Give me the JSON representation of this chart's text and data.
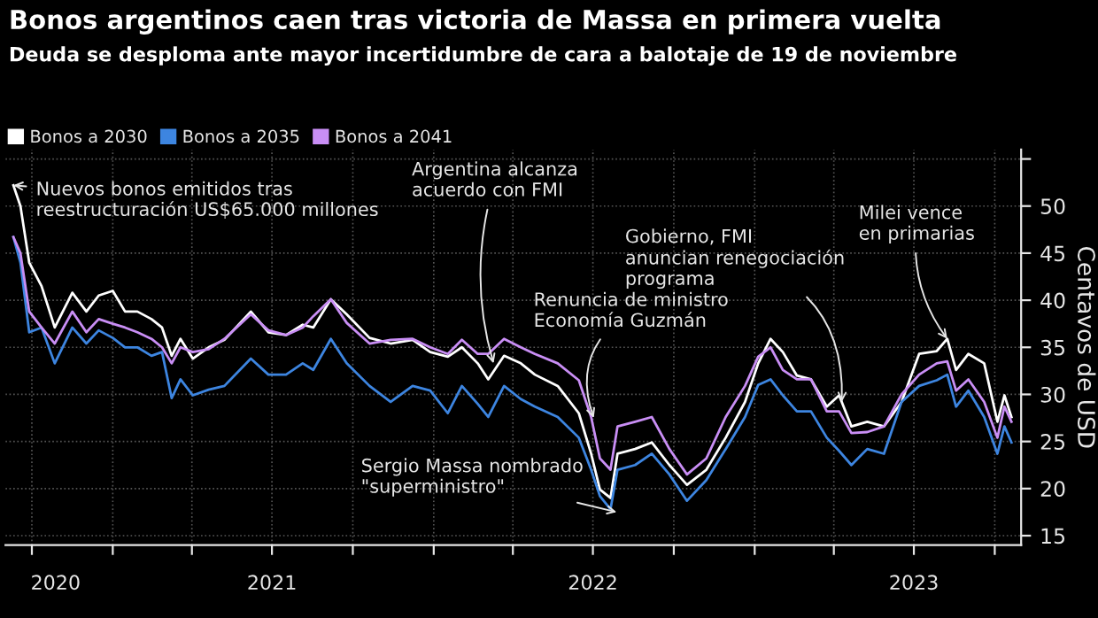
{
  "chart_data": {
    "type": "line",
    "title": "Bonos argentinos caen tras victoria de Massa en primera vuelta",
    "subtitle": "Deuda se desploma ante mayor incertidumbre de cara a balotaje de 19 de noviembre",
    "ylabel": "Centavos de USD",
    "x": [
      "2020-09-10",
      "2020-09-18",
      "2020-09-28",
      "2020-10-12",
      "2020-10-27",
      "2020-11-16",
      "2020-12-02",
      "2020-12-16",
      "2021-01-01",
      "2021-01-15",
      "2021-01-29",
      "2021-02-14",
      "2021-02-26",
      "2021-03-09",
      "2021-03-19",
      "2021-04-02",
      "2021-04-20",
      "2021-05-08",
      "2021-06-07",
      "2021-06-27",
      "2021-07-17",
      "2021-08-05",
      "2021-08-17",
      "2021-09-06",
      "2021-09-24",
      "2021-10-20",
      "2021-11-13",
      "2021-12-08",
      "2021-12-28",
      "2022-01-17",
      "2022-02-02",
      "2022-02-20",
      "2022-03-04",
      "2022-03-22",
      "2022-04-10",
      "2022-04-26",
      "2022-05-22",
      "2022-06-15",
      "2022-06-29",
      "2022-07-09",
      "2022-07-21",
      "2022-07-29",
      "2022-08-18",
      "2022-09-06",
      "2022-09-26",
      "2022-10-16",
      "2022-11-07",
      "2022-11-29",
      "2022-12-21",
      "2023-01-05",
      "2023-01-19",
      "2023-02-02",
      "2023-02-18",
      "2023-03-06",
      "2023-03-24",
      "2023-04-07",
      "2023-04-21",
      "2023-05-09",
      "2023-05-28",
      "2023-06-17",
      "2023-07-07",
      "2023-07-27",
      "2023-08-08",
      "2023-08-18",
      "2023-09-01",
      "2023-09-19",
      "2023-10-04",
      "2023-10-12",
      "2023-10-20"
    ],
    "series": [
      {
        "name": "Bonos a 2030",
        "color": "#ffffff",
        "values": [
          52.2,
          50.0,
          44.0,
          41.5,
          37.1,
          40.8,
          38.8,
          40.5,
          41.0,
          38.8,
          38.8,
          38.0,
          37.1,
          34.1,
          35.9,
          33.8,
          35.0,
          35.8,
          38.8,
          36.6,
          36.3,
          37.4,
          37.1,
          40.1,
          38.5,
          36.0,
          35.4,
          35.8,
          34.5,
          34.0,
          35.0,
          33.3,
          31.6,
          34.1,
          33.3,
          32.1,
          30.9,
          28.0,
          23.7,
          19.9,
          19.0,
          23.7,
          24.2,
          24.9,
          22.5,
          20.4,
          22.0,
          25.4,
          29.2,
          33.3,
          35.9,
          34.5,
          32.0,
          31.6,
          28.7,
          29.9,
          26.6,
          27.1,
          26.6,
          29.2,
          34.3,
          34.6,
          35.9,
          32.6,
          34.3,
          33.3,
          27.1,
          29.9,
          27.6
        ]
      },
      {
        "name": "Bonos a 2035",
        "color": "#3d85e0",
        "values": [
          46.7,
          44.0,
          36.6,
          37.1,
          33.3,
          37.1,
          35.4,
          36.8,
          36.0,
          35.0,
          35.0,
          34.1,
          34.5,
          29.6,
          31.6,
          29.9,
          30.5,
          30.9,
          33.8,
          32.1,
          32.1,
          33.3,
          32.6,
          35.9,
          33.3,
          30.9,
          29.2,
          30.9,
          30.4,
          28.0,
          30.9,
          29.0,
          27.6,
          30.9,
          29.5,
          28.7,
          27.6,
          25.4,
          22.0,
          19.2,
          17.8,
          22.0,
          22.5,
          23.7,
          21.5,
          18.7,
          20.9,
          24.2,
          27.6,
          31.0,
          31.6,
          29.9,
          28.2,
          28.2,
          25.4,
          24.0,
          22.5,
          24.2,
          23.7,
          29.2,
          30.9,
          31.5,
          32.1,
          28.7,
          30.4,
          27.6,
          23.7,
          26.6,
          24.9
        ]
      },
      {
        "name": "Bonos a 2041",
        "color": "#c98ef5",
        "values": [
          46.7,
          45.0,
          38.8,
          37.1,
          35.4,
          38.8,
          36.6,
          38.0,
          37.5,
          37.1,
          36.6,
          35.9,
          35.0,
          33.3,
          35.0,
          34.5,
          34.8,
          35.9,
          38.5,
          36.8,
          36.3,
          37.1,
          38.3,
          40.1,
          37.6,
          35.4,
          35.8,
          35.9,
          35.0,
          34.3,
          35.8,
          34.3,
          34.3,
          35.9,
          35.0,
          34.3,
          33.3,
          31.5,
          27.6,
          23.2,
          22.0,
          26.6,
          27.1,
          27.6,
          24.2,
          21.5,
          23.2,
          27.6,
          30.9,
          34.0,
          35.0,
          32.6,
          31.6,
          31.6,
          28.2,
          28.2,
          25.9,
          26.0,
          26.6,
          30.0,
          32.1,
          33.3,
          33.5,
          30.4,
          31.6,
          29.2,
          25.4,
          28.7,
          27.1
        ]
      }
    ],
    "xlim": [
      "2020-09-01",
      "2023-10-31"
    ],
    "xticks": [
      {
        "value": "2020-10-01",
        "label": null
      },
      {
        "value": "2021-01-01",
        "label": null
      },
      {
        "value": "2021-04-01",
        "label": null
      },
      {
        "value": "2021-07-01",
        "label": null
      },
      {
        "value": "2021-10-01",
        "label": null
      },
      {
        "value": "2022-01-01",
        "label": null
      },
      {
        "value": "2022-04-01",
        "label": null
      },
      {
        "value": "2022-07-01",
        "label": null
      },
      {
        "value": "2022-10-01",
        "label": null
      },
      {
        "value": "2023-01-01",
        "label": null
      },
      {
        "value": "2023-04-01",
        "label": null
      },
      {
        "value": "2023-07-01",
        "label": null
      },
      {
        "value": "2023-10-01",
        "label": null
      },
      {
        "value": "2020-10-28",
        "label": "2020"
      },
      {
        "value": "2021-07-01",
        "label": "2021"
      },
      {
        "value": "2022-07-01",
        "label": "2022"
      },
      {
        "value": "2023-07-01",
        "label": "2023"
      }
    ],
    "ylim": [
      14,
      56
    ],
    "yticks": [
      15,
      20,
      25,
      30,
      35,
      40,
      45,
      50,
      {
        "value": 55,
        "label": null
      }
    ],
    "grid": true,
    "legend": "top left",
    "annotations": [
      {
        "text": "Nuevos bonos emitidos tras\nreestructuración US$65.000 millones",
        "x": "2020-09-10",
        "y": 52.2
      },
      {
        "text": "Argentina alcanza\nacuerdo con FMI",
        "x": "2022-03-10",
        "y": 33.3
      },
      {
        "text": "Renuncia de ministro\nEconomía Guzmán",
        "x": "2022-07-02",
        "y": 27.5
      },
      {
        "text": "Sergio Massa nombrado\n\"superministro\"",
        "x": "2022-07-28",
        "y": 17.5
      },
      {
        "text": "Gobierno, FMI\nanuncian renegociación\nprograma",
        "x": "2023-04-10",
        "y": 29.2
      },
      {
        "text": "Milei vence\nen primarias",
        "x": "2023-08-08",
        "y": 35.9
      }
    ]
  }
}
